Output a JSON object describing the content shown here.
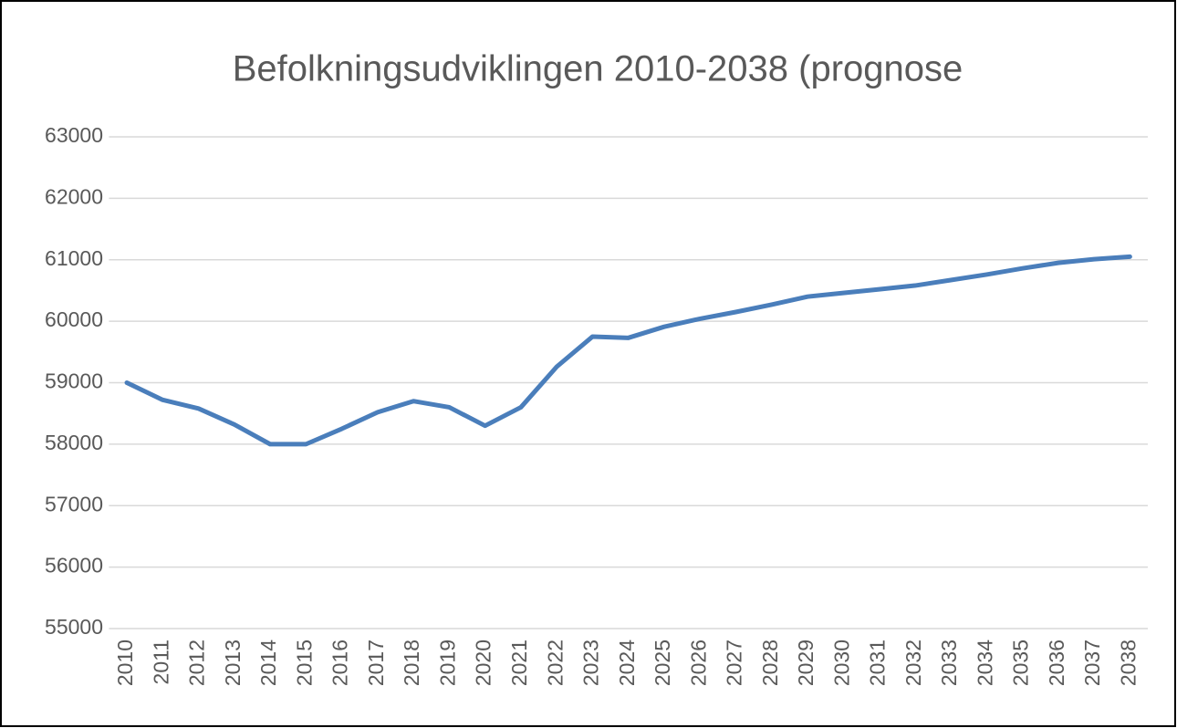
{
  "chart_data": {
    "type": "line",
    "title": "Befolkningsudviklingen 2010-2038 (prognose",
    "categories": [
      "2010",
      "2011",
      "2012",
      "2013",
      "2014",
      "2015",
      "2016",
      "2017",
      "2018",
      "2019",
      "2020",
      "2021",
      "2022",
      "2023",
      "2024",
      "2025",
      "2026",
      "2027",
      "2028",
      "2029",
      "2030",
      "2031",
      "2032",
      "2033",
      "2034",
      "2035",
      "2036",
      "2037",
      "2038"
    ],
    "series": [
      {
        "color": "#4a7ebb",
        "values": [
          59000,
          58720,
          58580,
          58320,
          58000,
          58000,
          58250,
          58520,
          58700,
          58600,
          58300,
          58600,
          59260,
          59750,
          59730,
          59910,
          60040,
          60150,
          60270,
          60400,
          60460,
          60520,
          60580,
          60670,
          60760,
          60860,
          60950,
          61010,
          61050
        ]
      }
    ],
    "ylim": [
      55000,
      63000
    ],
    "yticks": [
      55000,
      56000,
      57000,
      58000,
      59000,
      60000,
      61000,
      62000,
      63000
    ],
    "grid": true
  }
}
